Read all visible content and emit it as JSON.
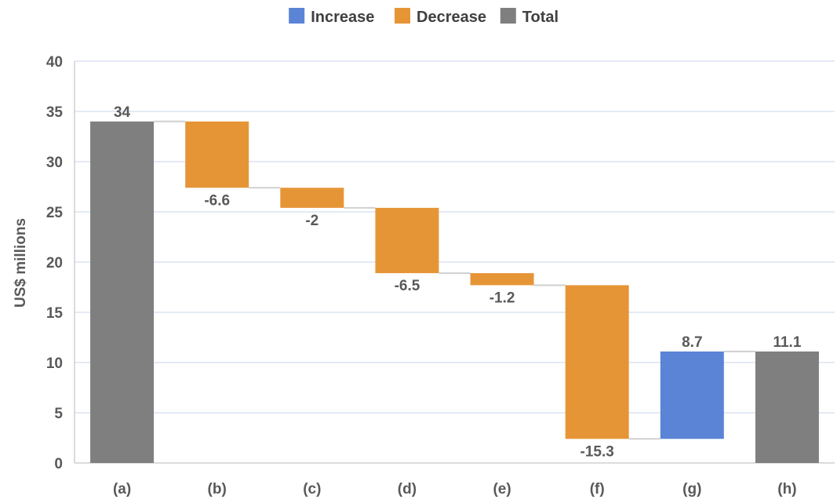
{
  "chart_data": {
    "type": "waterfall",
    "ylabel": "US$ millions",
    "ylim": [
      0,
      40
    ],
    "yticks": [
      0,
      5,
      10,
      15,
      20,
      25,
      30,
      35,
      40
    ],
    "grid": true,
    "legend_position": "top-center",
    "legend": [
      {
        "key": "increase",
        "label": "Increase",
        "color": "#5B84D6"
      },
      {
        "key": "decrease",
        "label": "Decrease",
        "color": "#E69536"
      },
      {
        "key": "total",
        "label": "Total",
        "color": "#7F7F7F"
      }
    ],
    "categories": [
      "(a)",
      "(b)",
      "(c)",
      "(d)",
      "(e)",
      "(f)",
      "(g)",
      "(h)"
    ],
    "values": [
      34,
      -6.6,
      -2,
      -6.5,
      -1.2,
      -15.3,
      8.7,
      11.1
    ],
    "labels": [
      "34",
      "-6.6",
      "-2",
      "-6.5",
      "-1.2",
      "-15.3",
      "8.7",
      "11.1"
    ],
    "kinds": [
      "total",
      "decrease",
      "decrease",
      "decrease",
      "decrease",
      "decrease",
      "increase",
      "total"
    ]
  }
}
